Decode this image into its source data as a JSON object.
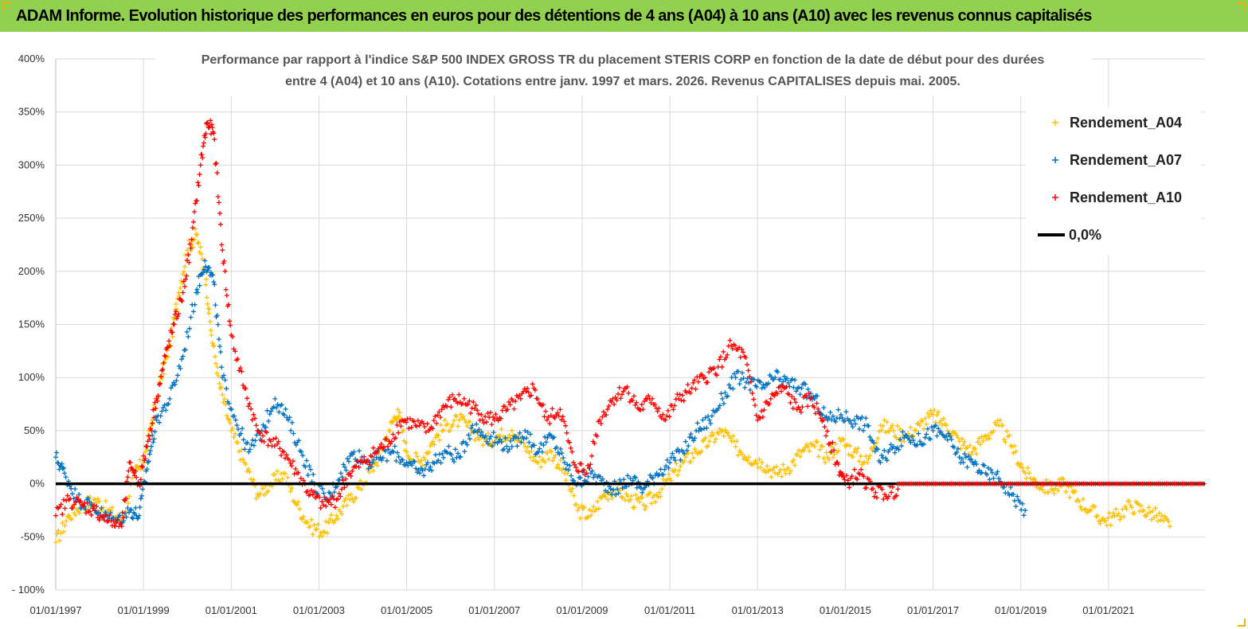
{
  "header": {
    "title": "ADAM Informe. Evolution historique des performances en euros pour des détentions de 4 ans (A04) à 10 ans (A10) avec les revenus connus capitalisés"
  },
  "colors": {
    "header_bg": "#92d050",
    "a04": "#ffc000",
    "a07": "#0070c0",
    "a10": "#ff0000",
    "zero": "#000000",
    "grid": "#d9d9d9"
  },
  "chart_data": {
    "type": "scatter",
    "title_line1": "Performance par rapport à l'indice S&P 500 INDEX GROSS TR  du placement STERIS CORP en fonction de la date de début pour des durées",
    "title_line2": "entre 4 (A04) et 10 ans (A10).  Cotations entre janv. 1997 et mars. 2026. Revenus CAPITALISES depuis mai. 2005.",
    "xlabel": "",
    "ylabel": "",
    "xlim": [
      1997.0,
      2023.2
    ],
    "ylim": [
      -100,
      400
    ],
    "y_ticks": [
      -100,
      -50,
      0,
      50,
      100,
      150,
      200,
      250,
      300,
      350,
      400
    ],
    "y_tick_labels": [
      "- 100%",
      "-50%",
      "0%",
      "50%",
      "100%",
      "150%",
      "200%",
      "250%",
      "300%",
      "350%",
      "400%"
    ],
    "x_ticks": [
      1997,
      1999,
      2001,
      2003,
      2005,
      2007,
      2009,
      2011,
      2013,
      2015,
      2017,
      2019,
      2021
    ],
    "x_tick_labels": [
      "01/01/1997",
      "01/01/1999",
      "01/01/2001",
      "01/01/2003",
      "01/01/2005",
      "01/01/2007",
      "01/01/2009",
      "01/01/2011",
      "01/01/2013",
      "01/01/2015",
      "01/01/2017",
      "01/01/2019",
      "01/01/2021"
    ],
    "legend_position": "top-right",
    "series": [
      {
        "name": "Rendement_A04",
        "marker": "+",
        "color": "#ffc000",
        "x": [
          1997.0,
          1997.3,
          1997.6,
          1997.9,
          1998.2,
          1998.5,
          1998.8,
          1999.0,
          1999.2,
          1999.4,
          1999.6,
          1999.8,
          2000.0,
          2000.2,
          2000.4,
          2000.55,
          2000.75,
          2001.0,
          2001.3,
          2001.6,
          2001.9,
          2002.2,
          2002.5,
          2002.8,
          2003.1,
          2003.4,
          2003.7,
          2004.0,
          2004.3,
          2004.6,
          2004.8,
          2005.0,
          2005.3,
          2005.6,
          2005.9,
          2006.2,
          2006.5,
          2006.8,
          2007.1,
          2007.4,
          2007.7,
          2008.0,
          2008.3,
          2008.6,
          2008.9,
          2009.2,
          2009.5,
          2009.8,
          2010.1,
          2010.4,
          2010.7,
          2011.0,
          2011.3,
          2011.6,
          2011.9,
          2012.2,
          2012.5,
          2012.8,
          2013.1,
          2013.4,
          2013.7,
          2014.0,
          2014.3,
          2014.6,
          2014.9,
          2015.2,
          2015.5,
          2015.8,
          2016.1,
          2016.4,
          2016.7,
          2017.0,
          2017.3,
          2017.6,
          2017.9,
          2018.2,
          2018.5,
          2018.8,
          2019.1,
          2019.4,
          2019.7,
          2020.0,
          2020.3,
          2020.6,
          2020.9,
          2021.2,
          2021.5,
          2021.8,
          2022.1,
          2022.4
        ],
        "y": [
          -55,
          -30,
          -20,
          -15,
          -25,
          -35,
          10,
          20,
          60,
          100,
          130,
          180,
          220,
          235,
          200,
          140,
          90,
          50,
          20,
          -10,
          0,
          10,
          -20,
          -40,
          -45,
          -30,
          -15,
          0,
          20,
          50,
          70,
          30,
          20,
          40,
          55,
          60,
          50,
          40,
          45,
          50,
          35,
          20,
          30,
          10,
          -25,
          -30,
          -10,
          -5,
          -15,
          -20,
          -10,
          5,
          20,
          30,
          40,
          50,
          35,
          25,
          20,
          10,
          15,
          30,
          35,
          25,
          40,
          30,
          20,
          55,
          50,
          45,
          55,
          65,
          55,
          40,
          30,
          45,
          55,
          35,
          10,
          0,
          -5,
          0,
          -15,
          -25,
          -35,
          -30,
          -20,
          -25,
          -30,
          -40
        ]
      },
      {
        "name": "Rendement_A07",
        "marker": "+",
        "color": "#0070c0",
        "x": [
          1997.0,
          1997.2,
          1997.5,
          1997.8,
          1998.1,
          1998.4,
          1998.7,
          1998.9,
          1999.1,
          1999.3,
          1999.6,
          1999.9,
          2000.2,
          2000.4,
          2000.6,
          2000.8,
          2001.1,
          2001.4,
          2001.7,
          2002.0,
          2002.3,
          2002.6,
          2002.9,
          2003.2,
          2003.5,
          2003.8,
          2004.1,
          2004.4,
          2004.7,
          2005.0,
          2005.3,
          2005.6,
          2005.9,
          2006.2,
          2006.5,
          2006.8,
          2007.1,
          2007.4,
          2007.7,
          2008.0,
          2008.3,
          2008.6,
          2008.9,
          2009.2,
          2009.5,
          2009.8,
          2010.1,
          2010.4,
          2010.7,
          2011.0,
          2011.3,
          2011.6,
          2011.9,
          2012.2,
          2012.5,
          2012.8,
          2013.1,
          2013.4,
          2013.7,
          2014.0,
          2014.3,
          2014.6,
          2014.9,
          2015.2,
          2015.5,
          2015.8,
          2016.1,
          2016.4,
          2016.7,
          2017.0,
          2017.3,
          2017.6,
          2017.9,
          2018.2,
          2018.5,
          2018.8,
          2019.1
        ],
        "y": [
          25,
          10,
          -15,
          -20,
          -30,
          -35,
          -25,
          -30,
          20,
          60,
          80,
          120,
          180,
          210,
          190,
          100,
          60,
          30,
          50,
          80,
          60,
          30,
          0,
          -15,
          10,
          30,
          20,
          25,
          30,
          20,
          10,
          20,
          30,
          25,
          55,
          45,
          40,
          35,
          50,
          30,
          45,
          20,
          0,
          10,
          0,
          -5,
          5,
          -5,
          10,
          20,
          30,
          50,
          60,
          80,
          100,
          95,
          90,
          100,
          95,
          90,
          80,
          60,
          65,
          60,
          55,
          20,
          35,
          45,
          40,
          50,
          45,
          25,
          20,
          10,
          5,
          -10,
          -25
        ]
      },
      {
        "name": "Rendement_A10",
        "marker": "+",
        "color": "#ff0000",
        "x": [
          1997.0,
          1997.3,
          1997.6,
          1997.9,
          1998.2,
          1998.5,
          1998.7,
          1998.9,
          1999.1,
          1999.3,
          1999.5,
          1999.7,
          1999.9,
          2000.1,
          2000.3,
          2000.45,
          2000.6,
          2000.8,
          2001.0,
          2001.3,
          2001.6,
          2001.9,
          2002.2,
          2002.5,
          2002.8,
          2003.1,
          2003.4,
          2003.7,
          2004.0,
          2004.3,
          2004.6,
          2004.9,
          2005.2,
          2005.5,
          2005.8,
          2006.1,
          2006.4,
          2006.7,
          2007.0,
          2007.3,
          2007.6,
          2007.9,
          2008.2,
          2008.5,
          2008.8,
          2009.1,
          2009.4,
          2009.7,
          2010.0,
          2010.3,
          2010.6,
          2010.9,
          2011.2,
          2011.5,
          2011.8,
          2012.1,
          2012.4,
          2012.7,
          2013.0,
          2013.3,
          2013.6,
          2013.9,
          2014.2,
          2014.5,
          2014.8,
          2015.0,
          2015.3,
          2015.6,
          2015.9,
          2016.2
        ],
        "y": [
          -30,
          -15,
          -20,
          -25,
          -35,
          -40,
          20,
          0,
          40,
          80,
          120,
          150,
          180,
          230,
          300,
          340,
          330,
          220,
          140,
          90,
          50,
          40,
          30,
          10,
          -10,
          -20,
          -15,
          10,
          20,
          30,
          40,
          60,
          55,
          50,
          70,
          80,
          75,
          65,
          60,
          70,
          80,
          90,
          60,
          70,
          20,
          10,
          60,
          80,
          90,
          70,
          80,
          60,
          80,
          90,
          100,
          110,
          130,
          120,
          60,
          80,
          90,
          70,
          80,
          60,
          20,
          0,
          10,
          -5,
          -10,
          -5
        ]
      },
      {
        "name": "0,0%",
        "type": "line",
        "color": "#000000",
        "x": [
          1997.0,
          2023.2
        ],
        "y": [
          0,
          0
        ]
      }
    ]
  }
}
